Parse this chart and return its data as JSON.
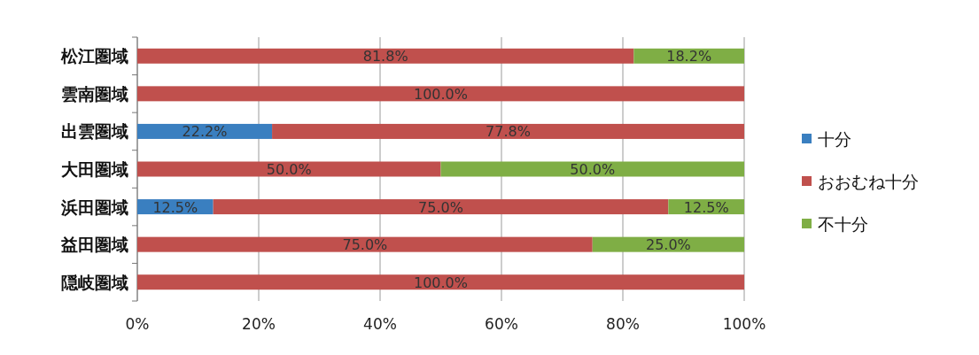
{
  "chart_data": {
    "type": "bar",
    "orientation": "horizontal",
    "stacked": true,
    "categories": [
      "松江圏域",
      "雲南圏域",
      "出雲圏域",
      "大田圏域",
      "浜田圏域",
      "益田圏域",
      "隠岐圏域"
    ],
    "series": [
      {
        "name": "十分",
        "color": "#3a7fc0",
        "values": [
          null,
          null,
          22.2,
          null,
          12.5,
          null,
          null
        ],
        "value_labels": [
          null,
          null,
          "22.2%",
          null,
          "12.5%",
          null,
          null
        ]
      },
      {
        "name": "おおむね十分",
        "color": "#c0504d",
        "values": [
          81.8,
          100,
          77.8,
          50,
          75,
          75,
          100
        ],
        "value_labels": [
          "81.8%",
          "100.0%",
          "77.8%",
          "50.0%",
          "75.0%",
          "75.0%",
          "100.0%"
        ]
      },
      {
        "name": "不十分",
        "color": "#7fae45",
        "values": [
          18.2,
          null,
          null,
          50,
          12.5,
          25,
          null
        ],
        "value_labels": [
          "18.2%",
          null,
          null,
          "50.0%",
          "12.5%",
          "25.0%",
          null
        ]
      }
    ],
    "xlim": [
      0,
      100
    ],
    "xticks": [
      {
        "value": 0,
        "label": "0%"
      },
      {
        "value": 20,
        "label": "20%"
      },
      {
        "value": 40,
        "label": "40%"
      },
      {
        "value": 60,
        "label": "60%"
      },
      {
        "value": 80,
        "label": "80%"
      },
      {
        "value": 100,
        "label": "100%"
      }
    ],
    "grid": "x",
    "legend": "right"
  }
}
